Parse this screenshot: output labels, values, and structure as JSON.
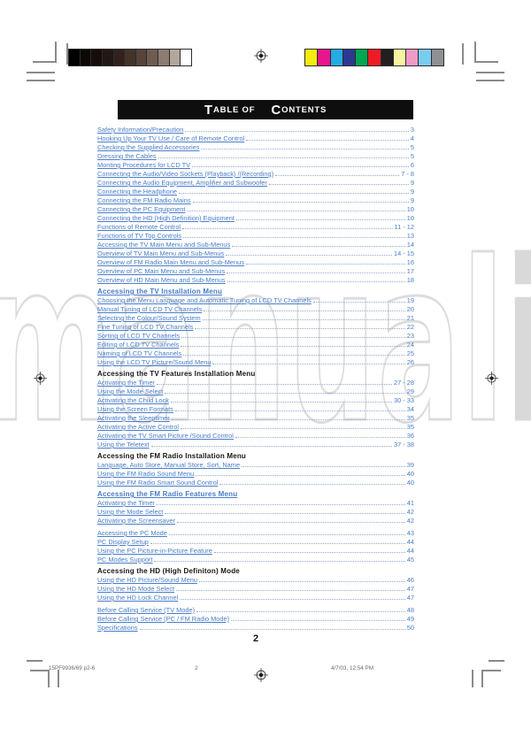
{
  "title": {
    "t_big": "T",
    "t_small": "ABLE OF",
    "c_big": "C",
    "c_small": "ONTENTS"
  },
  "colors": {
    "link": "#4a7dc8",
    "leader": "#93accf",
    "heading_black": "#161616",
    "titlebar_bg": "#0e0e0e"
  },
  "watermark": {
    "outline_text": "manual",
    "filled_text": "i"
  },
  "calibration": {
    "grayscale": [
      "#000000",
      "#0d0806",
      "#160e0b",
      "#221713",
      "#31221c",
      "#433329",
      "#564439",
      "#6f5c50",
      "#8d7c70",
      "#b3a79b",
      "#ffffff"
    ],
    "colors": [
      "#f7ec0f",
      "#e8168c",
      "#25aae1",
      "#2b3990",
      "#00a651",
      "#ed1c24",
      "#231f20",
      "#f7f4a1",
      "#f29ac7",
      "#7accee",
      "#8e9093"
    ]
  },
  "toc": {
    "groups": [
      {
        "heading": null,
        "gap": false,
        "items": [
          {
            "label": "Safety Information/Precaution",
            "page": "3"
          },
          {
            "label": "Hooking Up Your TV Use / Care of Remote Control",
            "page": "4"
          },
          {
            "label": "Checking the Supplied Accessories",
            "page": "5"
          },
          {
            "label": "Dressing the Cables",
            "page": "5"
          },
          {
            "label": "Monting Procedures for LCD TV",
            "page": "6"
          },
          {
            "label": "Connecting the Audio/Video Sockets (Playback) /(Recording)",
            "page": "7 - 8"
          },
          {
            "label": "Connecting the Audio Equipment, Amplifier and Subwoofer",
            "page": "9"
          },
          {
            "label": "Connecting the Headphone",
            "page": "9"
          },
          {
            "label": "Connecting the FM Radio Mains",
            "page": "9"
          },
          {
            "label": "Connecting the PC Equipment",
            "page": "10"
          },
          {
            "label": "Connecting the HD (High Definition) Equipment",
            "page": "10"
          },
          {
            "label": "Functions of Remote Control",
            "page": "11 - 12"
          },
          {
            "label": "Functions of TV Top Controls",
            "page": "13"
          },
          {
            "label": "Accessing the TV Main Menu and Sub-Menus",
            "page": "14"
          },
          {
            "label": "Overview of TV Main Menu and Sub-Menus",
            "page": "14 - 15"
          },
          {
            "label": "Overview of FM Radio Main Menu and Sub-Menus",
            "page": "16"
          },
          {
            "label": "Overview of PC Main Menu and Sub-Menus",
            "page": "17"
          },
          {
            "label": "Overview of HD Main Menu and Sub-Menus",
            "page": "18"
          }
        ]
      },
      {
        "heading": {
          "text": "Accessing the TV Installation Menu",
          "style": "blue"
        },
        "gap": false,
        "items": [
          {
            "label": "Choosing the Menu Language and Automatic Tuning of LCD TV Channels",
            "page": "19"
          },
          {
            "label": "Manual Tuning of LCD TV Channels",
            "page": "20"
          },
          {
            "label": "Selecting the Colour/Sound System",
            "page": "21"
          },
          {
            "label": "Fine Tuning of LCD TV Channels",
            "page": "22"
          },
          {
            "label": "Sorting of LCD TV Channels",
            "page": "23"
          },
          {
            "label": "Editing of LCD TV Channels",
            "page": "24"
          },
          {
            "label": "Naming of LCD TV Channels",
            "page": "25"
          },
          {
            "label": "Using the LCD TV Picture/Sound Menu",
            "page": "26"
          }
        ]
      },
      {
        "heading": {
          "text": "Accessing the TV Features Installation Menu",
          "style": "black"
        },
        "gap": false,
        "items": [
          {
            "label": "Activating the Timer",
            "page": "27 - 28"
          },
          {
            "label": "Using the Mode Select",
            "page": "29"
          },
          {
            "label": "Activating the Child Lock",
            "page": "30 - 33"
          },
          {
            "label": "Using the Screen Formats",
            "page": "34"
          },
          {
            "label": "Activating the Sleeptimer",
            "page": "35"
          },
          {
            "label": "Activating the Active Control",
            "page": "35"
          },
          {
            "label": "Activating the TV Smart Picture /Sound Control",
            "page": "36"
          },
          {
            "label": "Using the Teletext",
            "page": "37 - 38"
          }
        ]
      },
      {
        "heading": {
          "text": "Accessing the FM Radio Installation Menu",
          "style": "black"
        },
        "gap": false,
        "items": [
          {
            "label": "Language, Auto Store, Manual Store, Sort, Name",
            "page": "39"
          },
          {
            "label": "Using the FM Radio Sound Menu",
            "page": "40"
          },
          {
            "label": "Using the FM Radio Smart Sound Control",
            "page": "40"
          }
        ]
      },
      {
        "heading": {
          "text": "Accessing the FM Radio Features Menu",
          "style": "blue"
        },
        "gap": false,
        "items": [
          {
            "label": "Activating the Timer",
            "page": "41"
          },
          {
            "label": "Using the Mode Select",
            "page": "42"
          },
          {
            "label": "Activating the Screensaver",
            "page": "42"
          }
        ]
      },
      {
        "heading": null,
        "gap": true,
        "items": [
          {
            "label": "Accessing the PC Mode",
            "page": "43"
          },
          {
            "label": "PC Display Setup",
            "page": "44"
          },
          {
            "label": "Using the PC Picture-in-Picture Feature",
            "page": "44"
          },
          {
            "label": "PC Modes Support",
            "page": "45"
          }
        ]
      },
      {
        "heading": {
          "text": "Accessing the HD (High Definiton) Mode",
          "style": "black"
        },
        "gap": false,
        "items": [
          {
            "label": "Using the HD Picture/Sound Menu",
            "page": "46"
          },
          {
            "label": "Using the HD Mode Select",
            "page": "47"
          },
          {
            "label": "Using the HD Lock Channel",
            "page": "47"
          }
        ]
      },
      {
        "heading": null,
        "gap": true,
        "items": [
          {
            "label": "Before Calling Service (TV Mode)",
            "page": "48"
          },
          {
            "label": "Before Calling Service (PC / FM Radio Mode)",
            "page": "49"
          },
          {
            "label": "Specifications",
            "page": "50"
          }
        ]
      }
    ]
  },
  "page_number_large": "2",
  "footer": {
    "left": "15PF9936/69 p2-6",
    "center_page": "2",
    "right": "4/7/03, 12:54 PM"
  }
}
